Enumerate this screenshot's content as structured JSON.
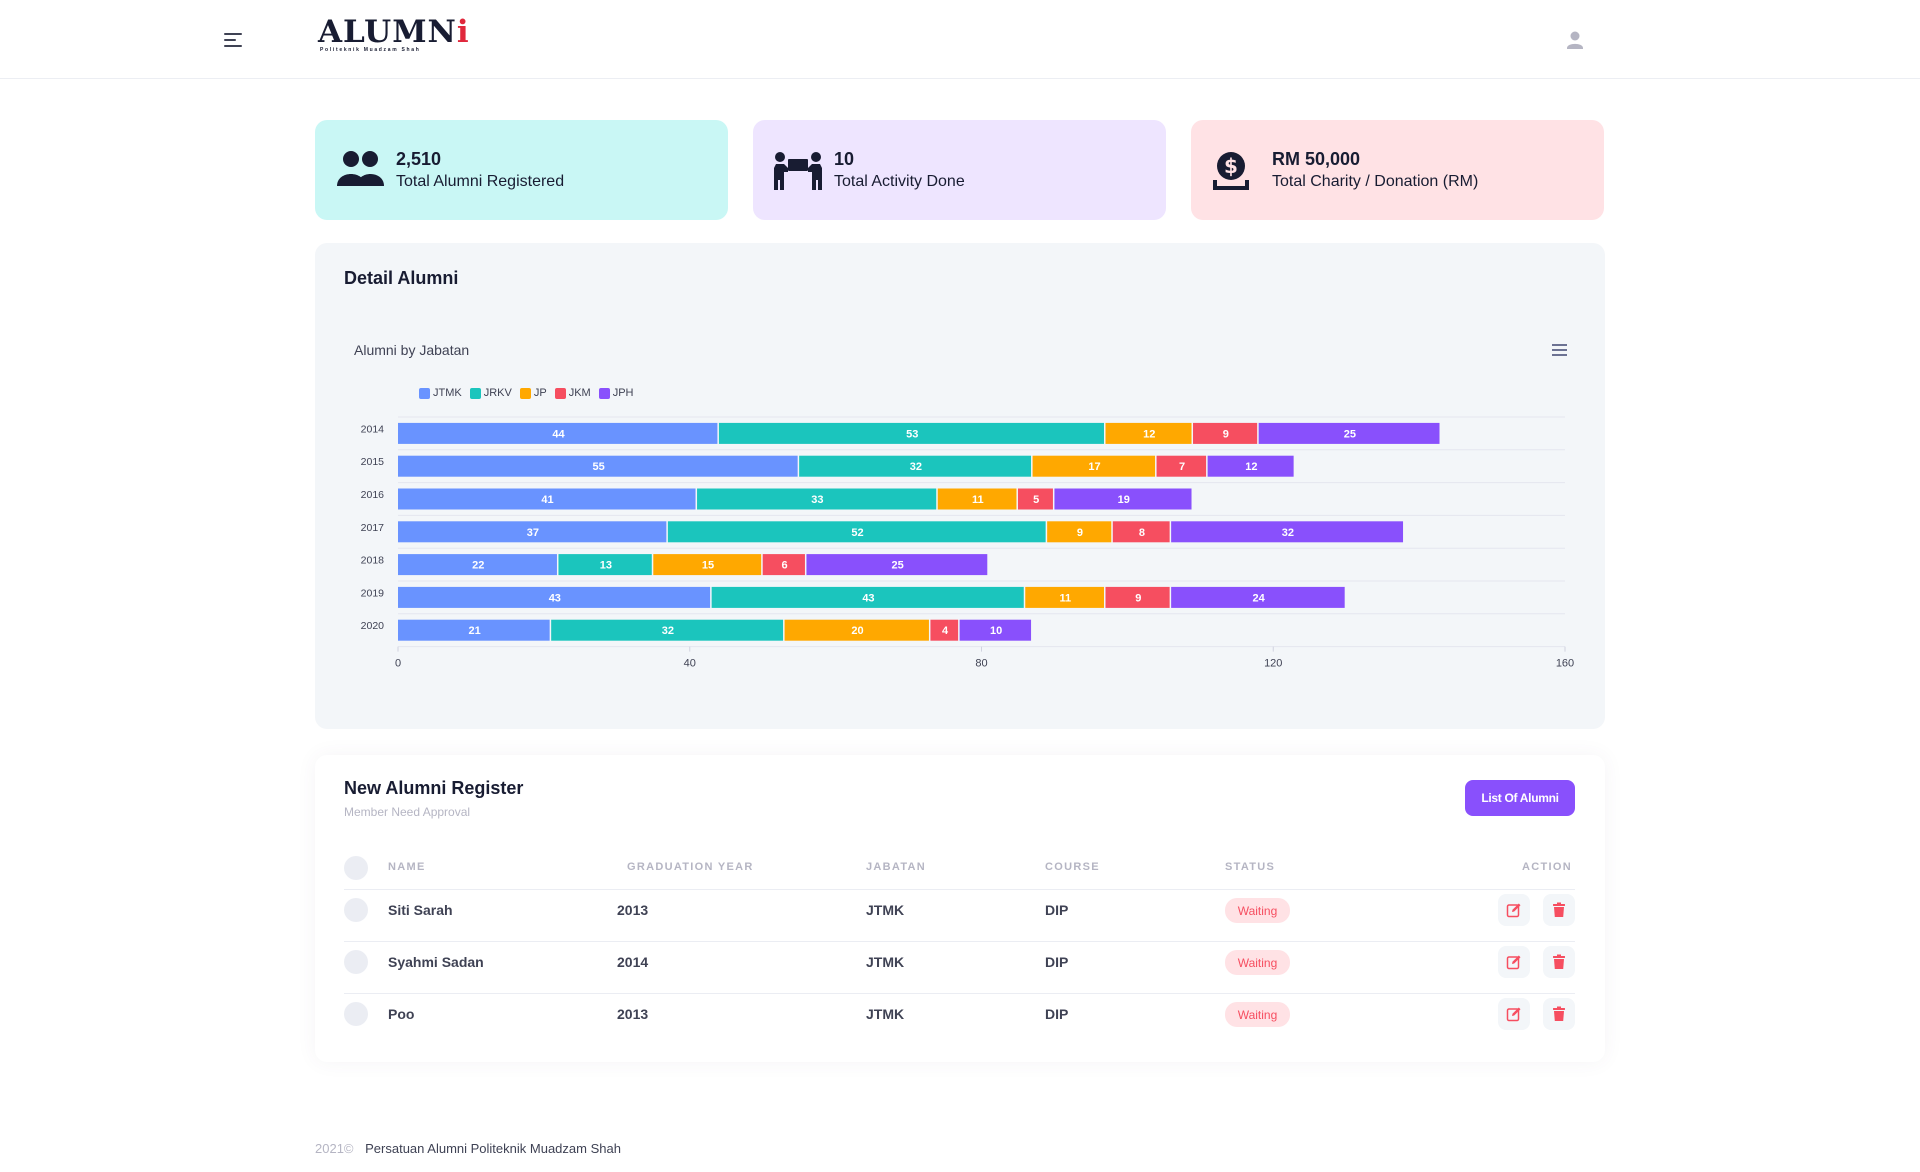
{
  "header": {
    "logo_text_main": "ALUMN",
    "logo_text_accent": "i",
    "logo_subtitle": "Politeknik Muadzam Shah",
    "menu_icon": "hamburger-icon",
    "user_icon": "user-icon"
  },
  "stats": [
    {
      "value": "2,510",
      "label": "Total Alumni Registered",
      "icon": "users-icon",
      "bg": "#c9f7f5"
    },
    {
      "value": "10",
      "label": "Total Activity Done",
      "icon": "activity-people-icon",
      "bg": "#eee5ff"
    },
    {
      "value": "RM 50,000",
      "label": "Total Charity / Donation (RM)",
      "icon": "donation-icon",
      "bg": "#ffe2e5"
    }
  ],
  "chart_card": {
    "title": "Detail Alumni"
  },
  "chart_data": {
    "type": "bar",
    "orientation": "horizontal",
    "stacked": true,
    "title": "Alumni by Jabatan",
    "categories": [
      "2014",
      "2015",
      "2016",
      "2017",
      "2018",
      "2019",
      "2020"
    ],
    "series": [
      {
        "name": "JTMK",
        "color": "#6993ff",
        "values": [
          44,
          55,
          41,
          37,
          22,
          43,
          21
        ]
      },
      {
        "name": "JRKV",
        "color": "#1bc5bd",
        "values": [
          53,
          32,
          33,
          52,
          13,
          43,
          32
        ]
      },
      {
        "name": "JP",
        "color": "#ffa800",
        "values": [
          12,
          17,
          11,
          9,
          15,
          11,
          20
        ]
      },
      {
        "name": "JKM",
        "color": "#f64e60",
        "values": [
          9,
          7,
          5,
          8,
          6,
          9,
          4
        ]
      },
      {
        "name": "JPH",
        "color": "#8950fc",
        "values": [
          25,
          12,
          19,
          32,
          25,
          24,
          10
        ]
      }
    ],
    "xlim": [
      0,
      160
    ],
    "xticks": [
      0,
      40,
      80,
      120,
      160
    ],
    "grid": true,
    "legend": "top-left",
    "data_labels": true
  },
  "table": {
    "title": "New Alumni Register",
    "subtitle": "Member Need Approval",
    "list_button": "List Of Alumni",
    "headers": {
      "name": "NAME",
      "graduation_year": "GRADUATION YEAR",
      "jabatan": "JABATAN",
      "course": "COURSE",
      "status": "STATUS",
      "action": "ACTION"
    },
    "rows": [
      {
        "name": "Siti Sarah",
        "year": "2013",
        "jabatan": "JTMK",
        "course": "DIP",
        "status": "Waiting"
      },
      {
        "name": "Syahmi Sadan",
        "year": "2014",
        "jabatan": "JTMK",
        "course": "DIP",
        "status": "Waiting"
      },
      {
        "name": "Poo",
        "year": "2013",
        "jabatan": "JTMK",
        "course": "DIP",
        "status": "Waiting"
      }
    ]
  },
  "footer": {
    "year": "2021©",
    "org": "Persatuan Alumni Politeknik Muadzam Shah"
  },
  "colors": {
    "accent": "#8950fc",
    "danger": "#f64e60",
    "danger_light": "#ffe2e5"
  }
}
